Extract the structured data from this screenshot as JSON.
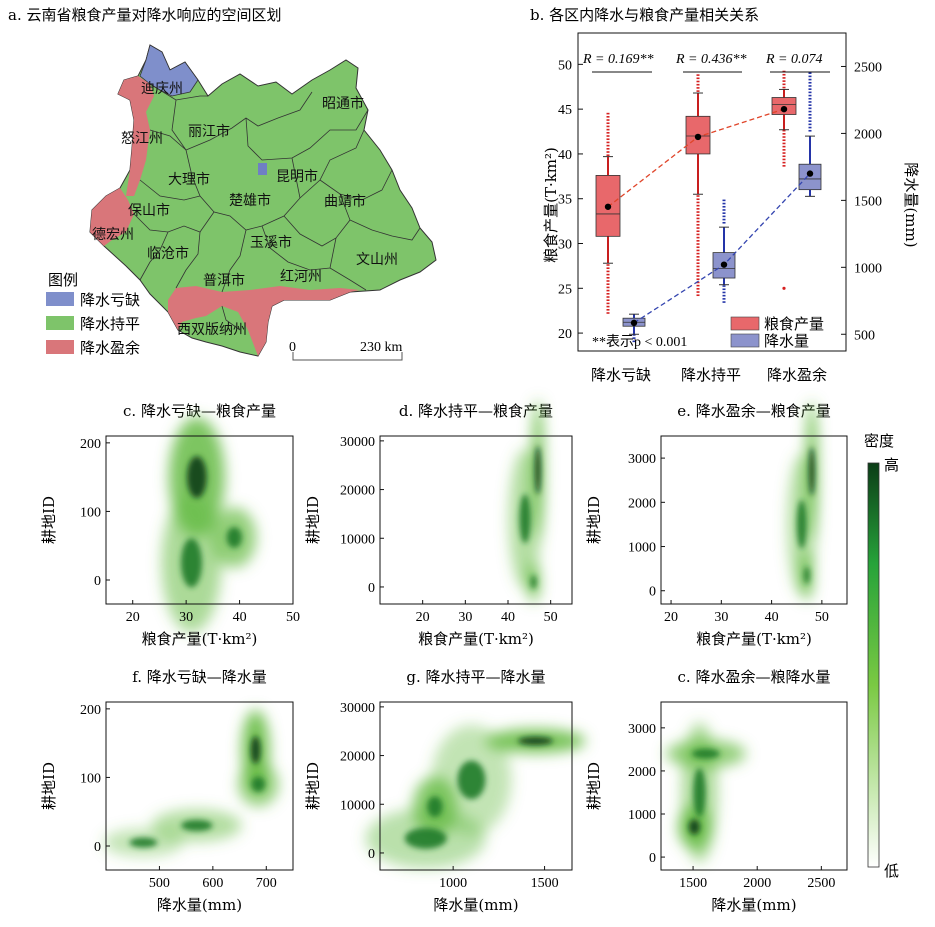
{
  "colors": {
    "deficit": "#7f8fcb",
    "balanced": "#7ec46a",
    "surplus": "#d9767a",
    "food_box": "#e8686b",
    "rain_box": "#8c93cc",
    "food_line": "#e0452a",
    "rain_line": "#3546b0",
    "density_high": "#0b3d17",
    "density_mid": "#3aa83a",
    "density_low": "#ffffff"
  },
  "panel_a": {
    "title": "a. 云南省粮食产量对降水响应的空间区划",
    "legend_title": "图例",
    "legend": [
      {
        "label": "降水亏缺",
        "color": "#7f8fcb"
      },
      {
        "label": "降水持平",
        "color": "#7ec46a"
      },
      {
        "label": "降水盈余",
        "color": "#d9767a"
      }
    ],
    "scale_0": "0",
    "scale_1": "230 km",
    "cities": [
      "迪庆州",
      "昭通市",
      "怒江州",
      "丽江市",
      "大理市",
      "昆明市",
      "曲靖市",
      "保山市",
      "楚雄市",
      "德宏州",
      "玉溪市",
      "临沧市",
      "文山州",
      "红河州",
      "普洱市",
      "西双版纳州"
    ]
  },
  "chart_data": [
    {
      "type": "box",
      "title": "b. 各区内降水与粮食产量相关关系",
      "categories": [
        "降水亏缺",
        "降水持平",
        "降水盈余"
      ],
      "ylabel": "粮食产量(T·km²)",
      "y2label": "降水量(mm)",
      "ylim": [
        18,
        53.5
      ],
      "y2lim": [
        375,
        2750
      ],
      "yticks": [
        20,
        25,
        30,
        35,
        40,
        45,
        50
      ],
      "y2ticks": [
        500,
        1000,
        1500,
        2000,
        2500
      ],
      "correlations": [
        "R = 0.169**",
        "R = 0.436**",
        "R = 0.074"
      ],
      "note": "**表示p < 0.001",
      "series": [
        {
          "name": "粮食产量",
          "axis": "left",
          "boxes": [
            {
              "min": 27.8,
              "q1": 30.8,
              "median": 33.3,
              "q3": 37.6,
              "max": 39.7,
              "mean": 34.1
            },
            {
              "min": 35.5,
              "q1": 40.0,
              "median": 42.0,
              "q3": 44.2,
              "max": 46.8,
              "mean": 41.9
            },
            {
              "min": 42.7,
              "q1": 44.4,
              "median": 45.5,
              "q3": 46.3,
              "max": 47.2,
              "mean": 45.0
            }
          ]
        },
        {
          "name": "降水量",
          "axis": "right",
          "boxes": [
            {
              "min": 500,
              "q1": 560,
              "median": 590,
              "q3": 620,
              "max": 650,
              "mean": 585
            },
            {
              "min": 870,
              "q1": 920,
              "median": 990,
              "q3": 1110,
              "max": 1300,
              "mean": 1020
            },
            {
              "min": 1530,
              "q1": 1580,
              "median": 1660,
              "q3": 1770,
              "max": 1980,
              "mean": 1700
            }
          ]
        }
      ]
    },
    {
      "type": "heatmap",
      "title": "c. 降水亏缺—粮食产量",
      "xlabel": "粮食产量(T·km²)",
      "ylabel": "耕地ID",
      "xlim": [
        15,
        50
      ],
      "ylim": [
        -35,
        210
      ],
      "xticks": [
        20,
        30,
        40,
        50
      ],
      "yticks": [
        0,
        100,
        200
      ],
      "blobs": [
        {
          "x": 32,
          "y": 150
        },
        {
          "x": 39,
          "y": 62
        },
        {
          "x": 31,
          "y": 25
        }
      ]
    },
    {
      "type": "heatmap",
      "title": "d. 降水持平—粮食产量",
      "xlabel": "粮食产量(T·km²)",
      "ylabel": "耕地ID",
      "xlim": [
        10,
        55
      ],
      "ylim": [
        -3500,
        31000
      ],
      "xticks": [
        20,
        30,
        40,
        50
      ],
      "yticks": [
        0,
        10000,
        20000,
        30000
      ],
      "blobs": [
        {
          "x": 47,
          "y": 24000
        },
        {
          "x": 46,
          "y": 1000
        },
        {
          "x": 44,
          "y": 14000
        }
      ]
    },
    {
      "type": "heatmap",
      "title": "e. 降水盈余—粮食产量",
      "xlabel": "粮食产量(T·km²)",
      "ylabel": "耕地ID",
      "xlim": [
        18,
        55
      ],
      "ylim": [
        -300,
        3500
      ],
      "xticks": [
        20,
        30,
        40,
        50
      ],
      "yticks": [
        0,
        1000,
        2000,
        3000
      ],
      "blobs": [
        {
          "x": 48,
          "y": 2700
        },
        {
          "x": 47,
          "y": 350
        },
        {
          "x": 46,
          "y": 1500
        }
      ]
    },
    {
      "type": "heatmap",
      "title": "f. 降水亏缺—降水量",
      "xlabel": "降水量(mm)",
      "ylabel": "耕地ID",
      "xlim": [
        400,
        750
      ],
      "ylim": [
        -35,
        210
      ],
      "xticks": [
        500,
        600,
        700
      ],
      "yticks": [
        0,
        100,
        200
      ],
      "blobs": [
        {
          "x": 680,
          "y": 140
        },
        {
          "x": 685,
          "y": 90
        },
        {
          "x": 570,
          "y": 30
        },
        {
          "x": 470,
          "y": 5
        }
      ]
    },
    {
      "type": "heatmap",
      "title": "g. 降水持平—降水量",
      "xlabel": "降水量(mm)",
      "ylabel": "耕地ID",
      "xlim": [
        600,
        1650
      ],
      "ylim": [
        -3500,
        31000
      ],
      "xticks": [
        1000,
        1500
      ],
      "yticks": [
        0,
        10000,
        20000,
        30000
      ],
      "blobs": [
        {
          "x": 1450,
          "y": 23000
        },
        {
          "x": 900,
          "y": 9500
        },
        {
          "x": 850,
          "y": 3000
        },
        {
          "x": 1100,
          "y": 15000
        }
      ]
    },
    {
      "type": "heatmap",
      "title": "c. 降水盈余—粮降水量",
      "xlabel": "降水量(mm)",
      "ylabel": "耕地ID",
      "xlim": [
        1250,
        2700
      ],
      "ylim": [
        -300,
        3600
      ],
      "xticks": [
        1500,
        2000,
        2500
      ],
      "yticks": [
        0,
        1000,
        2000,
        3000
      ],
      "blobs": [
        {
          "x": 1510,
          "y": 700
        },
        {
          "x": 1600,
          "y": 2400
        },
        {
          "x": 1550,
          "y": 1500
        }
      ]
    }
  ],
  "colorbar": {
    "title": "密度",
    "high": "高",
    "low": "低"
  }
}
